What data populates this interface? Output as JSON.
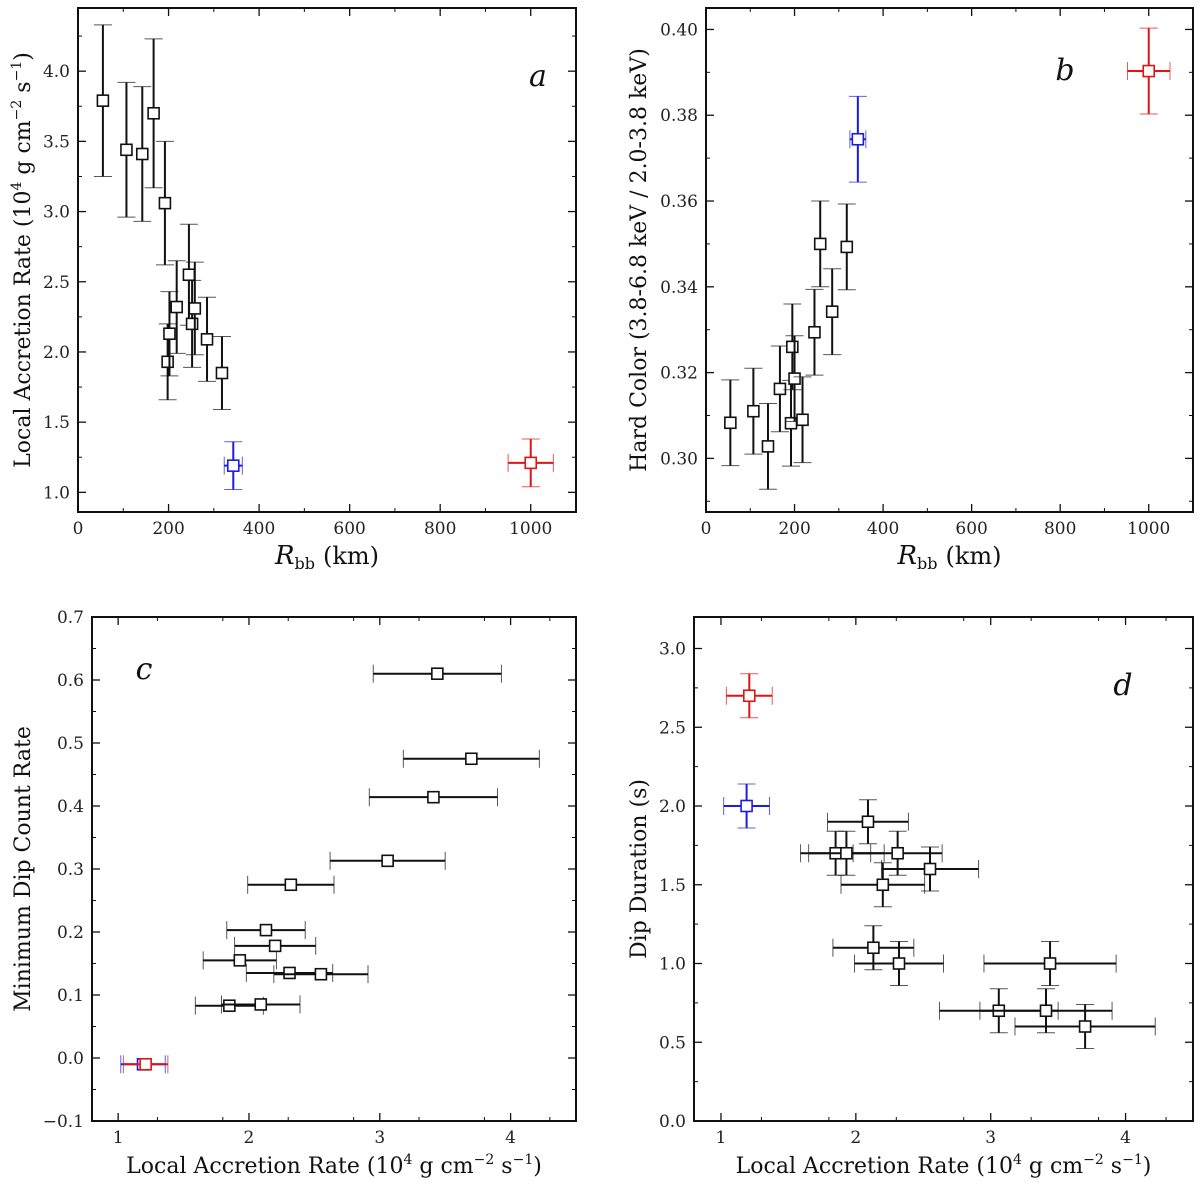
{
  "colors": {
    "black": "#111111",
    "blue": "#1c1ce0",
    "red": "#e01414",
    "marker_fill": "#ffffff"
  },
  "chart_data": [
    {
      "id": "a",
      "type": "scatter",
      "panel_label": "a",
      "xlabel_main": "R",
      "xlabel_sub": "bb",
      "xlabel_unit": "(km)",
      "ylabel": "Local Accretion Rate (10",
      "ylabel_exp1": "4",
      "ylabel_mid": " g cm",
      "ylabel_exp2": "−2",
      "ylabel_mid2": " s",
      "ylabel_exp3": "−1",
      "ylabel_end": ")",
      "xlim": [
        0,
        1100
      ],
      "ylim": [
        0.86,
        4.45
      ],
      "xticks": [
        0,
        200,
        400,
        600,
        800,
        1000
      ],
      "xtick_labels": [
        "0",
        "200",
        "400",
        "600",
        "800",
        "1000"
      ],
      "yticks": [
        1.0,
        1.5,
        2.0,
        2.5,
        3.0,
        3.5,
        4.0
      ],
      "ytick_labels": [
        "1.0",
        "1.5",
        "2.0",
        "2.5",
        "3.0",
        "3.5",
        "4.0"
      ],
      "points": [
        {
          "x": 55,
          "y": 3.79,
          "xerr": 0,
          "yerr": 0.54,
          "color": "black"
        },
        {
          "x": 107,
          "y": 3.44,
          "xerr": 0,
          "yerr": 0.48,
          "color": "black"
        },
        {
          "x": 142,
          "y": 3.41,
          "xerr": 0,
          "yerr": 0.48,
          "color": "black"
        },
        {
          "x": 167,
          "y": 3.7,
          "xerr": 0,
          "yerr": 0.53,
          "color": "black"
        },
        {
          "x": 192,
          "y": 3.06,
          "xerr": 0,
          "yerr": 0.44,
          "color": "black"
        },
        {
          "x": 198,
          "y": 1.93,
          "xerr": 0,
          "yerr": 0.27,
          "color": "black"
        },
        {
          "x": 202,
          "y": 2.13,
          "xerr": 0,
          "yerr": 0.3,
          "color": "black"
        },
        {
          "x": 218,
          "y": 2.32,
          "xerr": 0,
          "yerr": 0.33,
          "color": "black"
        },
        {
          "x": 245,
          "y": 2.55,
          "xerr": 0,
          "yerr": 0.36,
          "color": "black"
        },
        {
          "x": 252,
          "y": 2.2,
          "xerr": 0,
          "yerr": 0.31,
          "color": "black"
        },
        {
          "x": 258,
          "y": 2.31,
          "xerr": 0,
          "yerr": 0.33,
          "color": "black"
        },
        {
          "x": 285,
          "y": 2.09,
          "xerr": 0,
          "yerr": 0.3,
          "color": "black"
        },
        {
          "x": 318,
          "y": 1.85,
          "xerr": 0,
          "yerr": 0.26,
          "color": "black"
        },
        {
          "x": 343,
          "y": 1.19,
          "xerr": 20,
          "yerr": 0.17,
          "color": "blue"
        },
        {
          "x": 1000,
          "y": 1.21,
          "xerr": 50,
          "yerr": 0.17,
          "color": "red"
        }
      ]
    },
    {
      "id": "b",
      "type": "scatter",
      "panel_label": "b",
      "xlabel_main": "R",
      "xlabel_sub": "bb",
      "xlabel_unit": "(km)",
      "ylabel": "Hard Color (3.8-6.8 keV / 2.0-3.8 keV)",
      "xlim": [
        0,
        1100
      ],
      "ylim": [
        0.2875,
        0.405
      ],
      "xticks": [
        0,
        200,
        400,
        600,
        800,
        1000
      ],
      "xtick_labels": [
        "0",
        "200",
        "400",
        "600",
        "800",
        "1000"
      ],
      "yticks": [
        0.3,
        0.32,
        0.34,
        0.36,
        0.38,
        0.4
      ],
      "ytick_labels": [
        "0.30",
        "0.32",
        "0.34",
        "0.36",
        "0.38",
        "0.40"
      ],
      "points": [
        {
          "x": 55,
          "y": 0.3083,
          "xerr": 0,
          "yerr": 0.01,
          "color": "black"
        },
        {
          "x": 107,
          "y": 0.311,
          "xerr": 0,
          "yerr": 0.01,
          "color": "black"
        },
        {
          "x": 140,
          "y": 0.3028,
          "xerr": 0,
          "yerr": 0.01,
          "color": "black"
        },
        {
          "x": 167,
          "y": 0.3162,
          "xerr": 0,
          "yerr": 0.01,
          "color": "black"
        },
        {
          "x": 192,
          "y": 0.3082,
          "xerr": 0,
          "yerr": 0.01,
          "color": "black"
        },
        {
          "x": 195,
          "y": 0.326,
          "xerr": 0,
          "yerr": 0.01,
          "color": "black"
        },
        {
          "x": 200,
          "y": 0.3186,
          "xerr": 0,
          "yerr": 0.01,
          "color": "black"
        },
        {
          "x": 218,
          "y": 0.309,
          "xerr": 0,
          "yerr": 0.01,
          "color": "black"
        },
        {
          "x": 245,
          "y": 0.3294,
          "xerr": 0,
          "yerr": 0.01,
          "color": "black"
        },
        {
          "x": 258,
          "y": 0.35,
          "xerr": 0,
          "yerr": 0.01,
          "color": "black"
        },
        {
          "x": 285,
          "y": 0.3342,
          "xerr": 0,
          "yerr": 0.01,
          "color": "black"
        },
        {
          "x": 318,
          "y": 0.3493,
          "xerr": 0,
          "yerr": 0.01,
          "color": "black"
        },
        {
          "x": 343,
          "y": 0.3744,
          "xerr": 18,
          "yerr": 0.01,
          "color": "blue"
        },
        {
          "x": 1000,
          "y": 0.3903,
          "xerr": 48,
          "yerr": 0.01,
          "color": "red"
        }
      ]
    },
    {
      "id": "c",
      "type": "scatter",
      "panel_label": "c",
      "xlabel": "Local Accretion Rate (10",
      "xlabel_exp1": "4",
      "xlabel_mid": " g cm",
      "xlabel_exp2": "−2",
      "xlabel_mid2": " s",
      "xlabel_exp3": "−1",
      "xlabel_end": ")",
      "ylabel": "Minimum Dip Count Rate",
      "xlim": [
        0.8,
        4.5
      ],
      "ylim": [
        -0.1,
        0.7
      ],
      "xticks": [
        1,
        2,
        3,
        4
      ],
      "xtick_labels": [
        "1",
        "2",
        "3",
        "4"
      ],
      "yticks": [
        -0.1,
        0.0,
        0.1,
        0.2,
        0.3,
        0.4,
        0.5,
        0.6,
        0.7
      ],
      "ytick_labels": [
        "−0.1",
        "0.0",
        "0.1",
        "0.2",
        "0.3",
        "0.4",
        "0.5",
        "0.6",
        "0.7"
      ],
      "points": [
        {
          "x": 3.44,
          "y": 0.61,
          "xerr": 0.49,
          "yerr": 0,
          "color": "black"
        },
        {
          "x": 3.7,
          "y": 0.475,
          "xerr": 0.52,
          "yerr": 0,
          "color": "black"
        },
        {
          "x": 3.41,
          "y": 0.414,
          "xerr": 0.49,
          "yerr": 0,
          "color": "black"
        },
        {
          "x": 3.06,
          "y": 0.313,
          "xerr": 0.44,
          "yerr": 0,
          "color": "black"
        },
        {
          "x": 2.32,
          "y": 0.275,
          "xerr": 0.33,
          "yerr": 0,
          "color": "black"
        },
        {
          "x": 2.13,
          "y": 0.203,
          "xerr": 0.3,
          "yerr": 0,
          "color": "black"
        },
        {
          "x": 2.2,
          "y": 0.178,
          "xerr": 0.31,
          "yerr": 0,
          "color": "black"
        },
        {
          "x": 1.93,
          "y": 0.155,
          "xerr": 0.28,
          "yerr": 0,
          "color": "black"
        },
        {
          "x": 2.31,
          "y": 0.135,
          "xerr": 0.33,
          "yerr": 0,
          "color": "black"
        },
        {
          "x": 2.55,
          "y": 0.133,
          "xerr": 0.36,
          "yerr": 0,
          "color": "black"
        },
        {
          "x": 1.85,
          "y": 0.083,
          "xerr": 0.26,
          "yerr": 0,
          "color": "black"
        },
        {
          "x": 2.09,
          "y": 0.085,
          "xerr": 0.3,
          "yerr": 0,
          "color": "black"
        },
        {
          "x": 1.19,
          "y": -0.01,
          "xerr": 0.17,
          "yerr": 0,
          "color": "blue"
        },
        {
          "x": 1.21,
          "y": -0.01,
          "xerr": 0.17,
          "yerr": 0,
          "color": "red"
        }
      ]
    },
    {
      "id": "d",
      "type": "scatter",
      "panel_label": "d",
      "xlabel": "Local Accretion Rate (10",
      "xlabel_exp1": "4",
      "xlabel_mid": " g cm",
      "xlabel_exp2": "−2",
      "xlabel_mid2": " s",
      "xlabel_exp3": "−1",
      "xlabel_end": ")",
      "ylabel": "Dip Duration (s)",
      "xlim": [
        0.8,
        4.5
      ],
      "ylim": [
        0.0,
        3.2
      ],
      "xticks": [
        1,
        2,
        3,
        4
      ],
      "xtick_labels": [
        "1",
        "2",
        "3",
        "4"
      ],
      "yticks": [
        0.0,
        0.5,
        1.0,
        1.5,
        2.0,
        2.5,
        3.0
      ],
      "ytick_labels": [
        "0.0",
        "0.5",
        "1.0",
        "1.5",
        "2.0",
        "2.5",
        "3.0"
      ],
      "points": [
        {
          "x": 1.21,
          "y": 2.7,
          "xerr": 0.17,
          "yerr": 0.14,
          "color": "red"
        },
        {
          "x": 1.19,
          "y": 2.0,
          "xerr": 0.17,
          "yerr": 0.14,
          "color": "blue"
        },
        {
          "x": 2.09,
          "y": 1.9,
          "xerr": 0.3,
          "yerr": 0.14,
          "color": "black"
        },
        {
          "x": 1.85,
          "y": 1.7,
          "xerr": 0.26,
          "yerr": 0.14,
          "color": "black"
        },
        {
          "x": 1.93,
          "y": 1.7,
          "xerr": 0.28,
          "yerr": 0.14,
          "color": "black"
        },
        {
          "x": 2.31,
          "y": 1.7,
          "xerr": 0.33,
          "yerr": 0.14,
          "color": "black"
        },
        {
          "x": 2.55,
          "y": 1.6,
          "xerr": 0.36,
          "yerr": 0.14,
          "color": "black"
        },
        {
          "x": 2.2,
          "y": 1.5,
          "xerr": 0.31,
          "yerr": 0.14,
          "color": "black"
        },
        {
          "x": 2.13,
          "y": 1.1,
          "xerr": 0.3,
          "yerr": 0.14,
          "color": "black"
        },
        {
          "x": 2.32,
          "y": 1.0,
          "xerr": 0.33,
          "yerr": 0.14,
          "color": "black"
        },
        {
          "x": 3.44,
          "y": 1.0,
          "xerr": 0.49,
          "yerr": 0.14,
          "color": "black"
        },
        {
          "x": 3.06,
          "y": 0.7,
          "xerr": 0.44,
          "yerr": 0.14,
          "color": "black"
        },
        {
          "x": 3.41,
          "y": 0.7,
          "xerr": 0.49,
          "yerr": 0.14,
          "color": "black"
        },
        {
          "x": 3.7,
          "y": 0.6,
          "xerr": 0.52,
          "yerr": 0.14,
          "color": "black"
        }
      ]
    }
  ]
}
